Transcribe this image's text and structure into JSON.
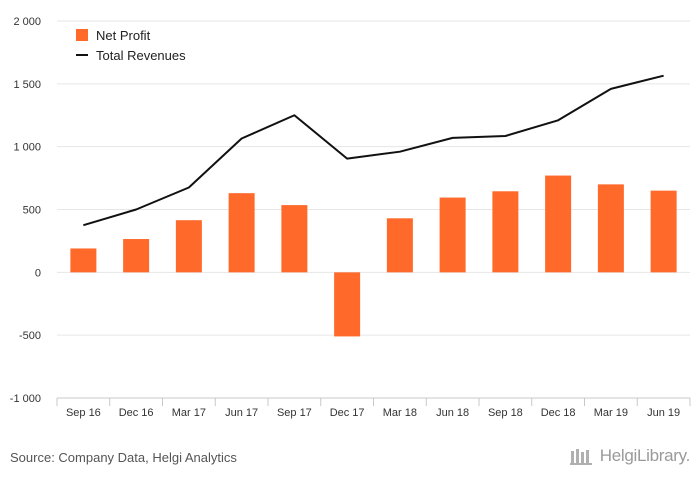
{
  "chart_data": {
    "type": "bar",
    "categories": [
      "Sep 16",
      "Dec 16",
      "Mar 17",
      "Jun 17",
      "Sep 17",
      "Dec 17",
      "Mar 18",
      "Jun 18",
      "Sep 18",
      "Dec 18",
      "Mar 19",
      "Jun 19"
    ],
    "series": [
      {
        "name": "Net Profit",
        "type": "bar",
        "color": "#ff6a2b",
        "values": [
          190,
          265,
          415,
          630,
          535,
          -510,
          430,
          595,
          645,
          770,
          700,
          650
        ]
      },
      {
        "name": "Total Revenues",
        "type": "line",
        "color": "#111111",
        "values": [
          375,
          500,
          675,
          1065,
          1250,
          905,
          960,
          1070,
          1085,
          1210,
          1460,
          1565
        ]
      }
    ],
    "ylim": [
      -1000,
      2000
    ],
    "yticks": [
      -1000,
      -500,
      0,
      500,
      1000,
      1500,
      2000
    ],
    "ytick_labels": [
      "-1 000",
      "-500",
      "0",
      "500",
      "1 000",
      "1 500",
      "2 000"
    ],
    "grid": true,
    "legend": "top-left"
  },
  "footer": {
    "source": "Source: Company Data, Helgi Analytics",
    "brand": "HelgiLibrary."
  }
}
